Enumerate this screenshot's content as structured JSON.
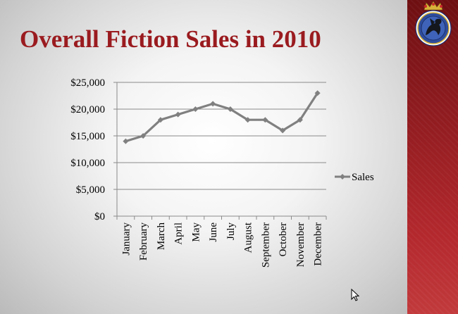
{
  "slide": {
    "title": "Overall Fiction Sales in 2010",
    "colors": {
      "title": "#9a1b1f",
      "series": "#808080",
      "band": "#a52a2e"
    }
  },
  "chart_data": {
    "type": "line",
    "title": "",
    "xlabel": "",
    "ylabel": "",
    "categories": [
      "January",
      "February",
      "March",
      "April",
      "May",
      "June",
      "July",
      "August",
      "September",
      "October",
      "November",
      "December"
    ],
    "series": [
      {
        "name": "Sales",
        "values": [
          14000,
          15000,
          18000,
          19000,
          20000,
          21000,
          20000,
          18000,
          18000,
          16000,
          18000,
          23000
        ]
      }
    ],
    "ylim": [
      0,
      25000
    ],
    "yticks": [
      "$0",
      "$5,000",
      "$10,000",
      "$15,000",
      "$20,000",
      "$25,000"
    ],
    "grid": true,
    "legend": "right",
    "marker": "diamond"
  }
}
